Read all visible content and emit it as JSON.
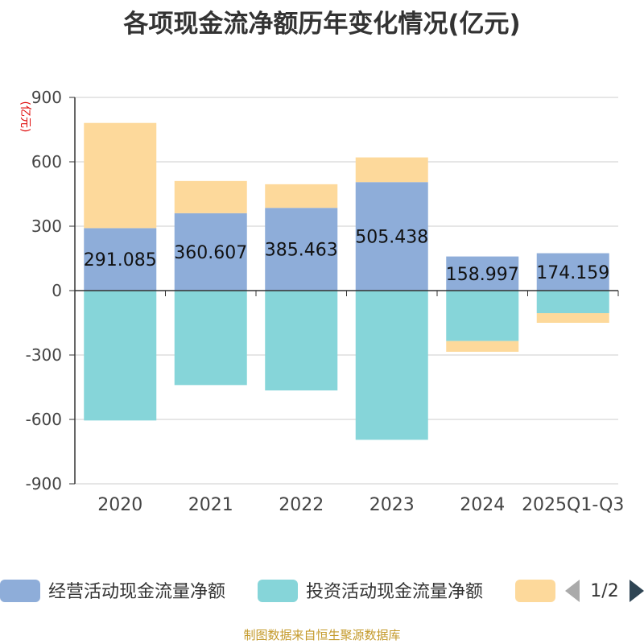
{
  "chart_data": {
    "type": "bar",
    "stacked": true,
    "title": "各项现金流净额历年变化情况(亿元)",
    "ylabel": "(亿元)",
    "xlabel": "",
    "ylim": [
      -900,
      900
    ],
    "yticks": [
      -900,
      -600,
      -300,
      0,
      300,
      600,
      900
    ],
    "grid": true,
    "legend": "bottom",
    "categories": [
      "2020",
      "2021",
      "2022",
      "2023",
      "2024",
      "2025Q1-Q3"
    ],
    "series": [
      {
        "name": "经营活动现金流量净额",
        "color": "#8eadd9",
        "values": [
          291.085,
          360.607,
          385.463,
          505.438,
          158.997,
          174.159
        ],
        "labels": [
          "291.085",
          "360.607",
          "385.463",
          "505.438",
          "158.997",
          "174.159"
        ]
      },
      {
        "name": "投资活动现金流量净额",
        "color": "#86d5d9",
        "values": [
          -605,
          -440,
          -465,
          -695,
          -235,
          -105
        ]
      },
      {
        "name": "",
        "color": "#fdd99b",
        "values": [
          490,
          150,
          110,
          115,
          -50,
          -45
        ]
      }
    ]
  },
  "legend_pager": {
    "page": "1/2"
  },
  "source": "制图数据来自恒生聚源数据库"
}
